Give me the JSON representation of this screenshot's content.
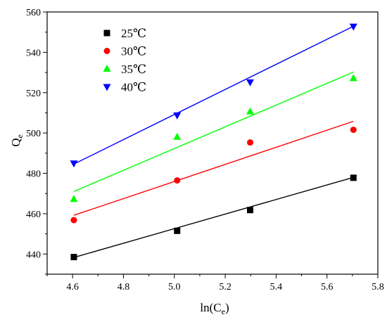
{
  "chart_data": {
    "type": "scatter",
    "title": "",
    "xlabel": "ln(C",
    "xlabel_sub": "e",
    "xlabel_close": ")",
    "ylabel": "Q",
    "ylabel_sub": "e",
    "xlim": [
      4.5,
      5.8
    ],
    "ylim": [
      430,
      560
    ],
    "xticks": [
      4.6,
      4.8,
      5.0,
      5.2,
      5.4,
      5.6,
      5.8
    ],
    "xtick_labels": [
      "4.6",
      "4.8",
      "5.0",
      "5.2",
      "5.4",
      "5.6",
      "5.8"
    ],
    "yticks": [
      440,
      460,
      480,
      500,
      520,
      540,
      560
    ],
    "ytick_labels": [
      "440",
      "460",
      "480",
      "500",
      "520",
      "540",
      "560"
    ],
    "grid": false,
    "legend_position": "top-left",
    "series": [
      {
        "name": "25℃",
        "marker": "square",
        "color": "#000000",
        "x": [
          4.605,
          5.011,
          5.298,
          5.704
        ],
        "y": [
          438.5,
          451.5,
          461.8,
          477.8
        ],
        "fit": {
          "x": [
            4.605,
            5.704
          ],
          "y": [
            438.3,
            478.0
          ]
        }
      },
      {
        "name": "30℃",
        "marker": "circle",
        "color": "#ff0000",
        "x": [
          4.605,
          5.011,
          5.298,
          5.704
        ],
        "y": [
          456.8,
          476.5,
          495.3,
          501.6
        ],
        "fit": {
          "x": [
            4.605,
            5.704
          ],
          "y": [
            459.2,
            505.8
          ]
        }
      },
      {
        "name": "35℃",
        "marker": "triangle-up",
        "color": "#00ff00",
        "x": [
          4.605,
          5.011,
          5.298,
          5.704
        ],
        "y": [
          467.2,
          498.0,
          510.6,
          527.1
        ],
        "fit": {
          "x": [
            4.605,
            5.704
          ],
          "y": [
            471.0,
            530.2
          ]
        }
      },
      {
        "name": "40℃",
        "marker": "triangle-down",
        "color": "#0000ff",
        "x": [
          4.605,
          5.011,
          5.298,
          5.704
        ],
        "y": [
          485.0,
          508.8,
          525.2,
          552.8
        ],
        "fit": {
          "x": [
            4.605,
            5.704
          ],
          "y": [
            484.6,
            552.9
          ]
        }
      }
    ]
  }
}
